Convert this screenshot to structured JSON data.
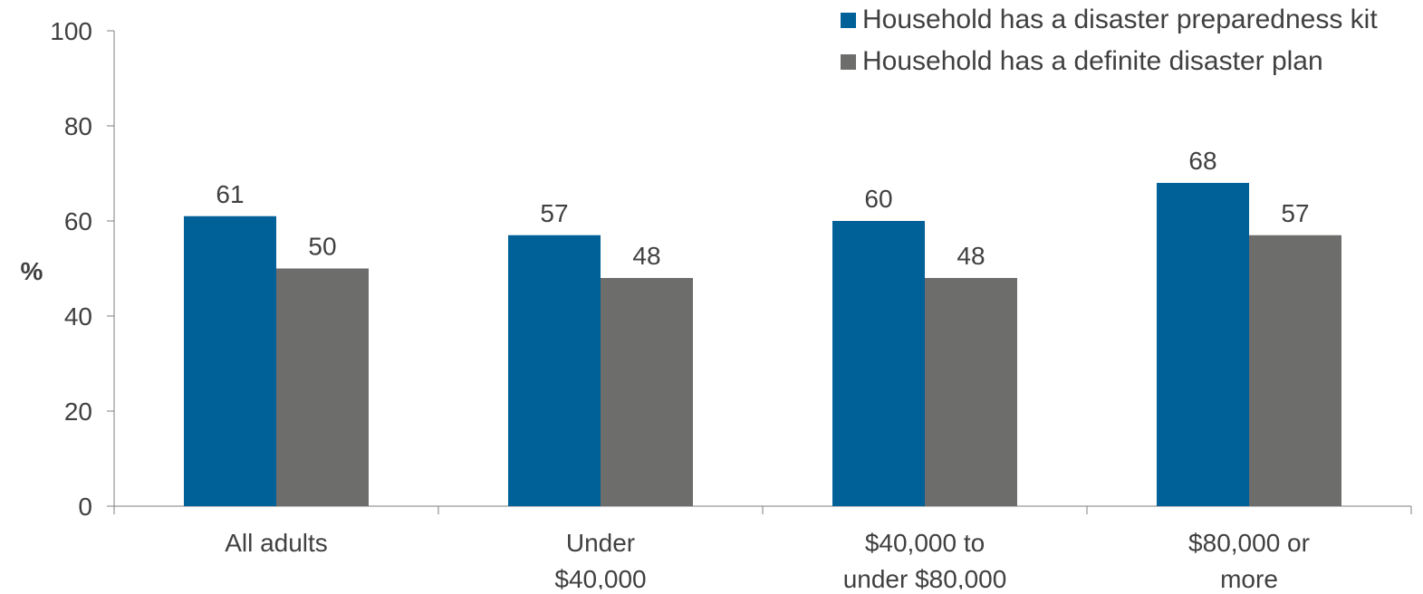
{
  "chart_data": {
    "type": "bar",
    "title": "",
    "xlabel": "",
    "ylabel": "%",
    "ylim": [
      0,
      100
    ],
    "yticks": [
      0,
      20,
      40,
      60,
      80,
      100
    ],
    "categories": [
      [
        "All adults"
      ],
      [
        "Under",
        "$40,000"
      ],
      [
        "$40,000 to",
        "under $80,000"
      ],
      [
        "$80,000 or",
        "more"
      ]
    ],
    "series": [
      {
        "name": "Household has a disaster preparedness kit",
        "color": "#006098",
        "values": [
          61,
          57,
          60,
          68
        ]
      },
      {
        "name": "Household has a definite disaster plan",
        "color": "#6D6E6C",
        "values": [
          50,
          48,
          48,
          57
        ]
      }
    ],
    "data_labels": true,
    "grid": false,
    "legend_position": "top-right"
  }
}
